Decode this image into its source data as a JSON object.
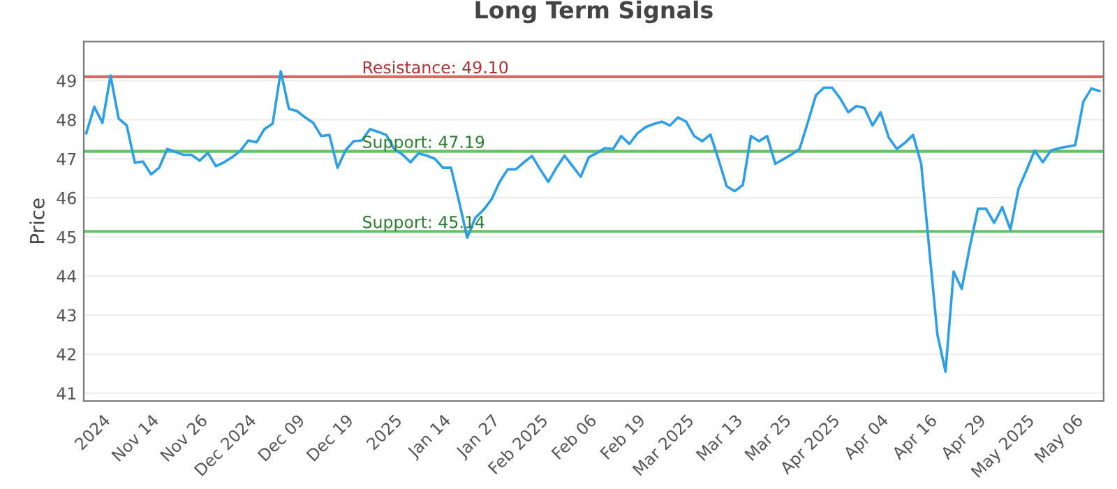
{
  "chart_data": {
    "type": "line",
    "title": "Long Term Signals",
    "ylabel": "Price",
    "categories": [
      null,
      null,
      "2024",
      null,
      null,
      null,
      null,
      null,
      "Nov 14",
      null,
      null,
      null,
      null,
      null,
      "Nov 26",
      null,
      null,
      null,
      null,
      null,
      "Dec 2024",
      null,
      null,
      null,
      null,
      null,
      "Dec 09",
      null,
      null,
      null,
      null,
      null,
      "Dec 19",
      null,
      null,
      null,
      null,
      null,
      "2025",
      null,
      null,
      null,
      null,
      null,
      "Jan 14",
      null,
      null,
      null,
      null,
      null,
      "Jan 27",
      null,
      null,
      null,
      null,
      null,
      "Feb 2025",
      null,
      null,
      null,
      null,
      null,
      "Feb 06",
      null,
      null,
      null,
      null,
      null,
      "Feb 19",
      null,
      null,
      null,
      null,
      null,
      "Mar 2025",
      null,
      null,
      null,
      null,
      null,
      "Mar 13",
      null,
      null,
      null,
      null,
      null,
      "Mar 25",
      null,
      null,
      null,
      null,
      null,
      "Apr 2025",
      null,
      null,
      null,
      null,
      null,
      "Apr 04",
      null,
      null,
      null,
      null,
      null,
      "Apr 16",
      null,
      null,
      null,
      null,
      null,
      "Apr 29",
      null,
      null,
      null,
      null,
      null,
      "May 2025",
      null,
      null,
      null,
      null,
      null,
      "May 06",
      null,
      null,
      null
    ],
    "series": [
      {
        "color": "#2e9fe6",
        "values": [
          47.65,
          48.33,
          47.92,
          49.13,
          48.03,
          47.85,
          46.9,
          46.93,
          46.6,
          46.77,
          47.25,
          47.18,
          47.1,
          47.1,
          46.95,
          47.15,
          46.81,
          46.91,
          47.04,
          47.2,
          47.47,
          47.42,
          47.76,
          47.9,
          49.24,
          48.28,
          48.22,
          48.06,
          47.92,
          47.58,
          47.61,
          46.77,
          47.22,
          47.45,
          47.47,
          47.76,
          47.69,
          47.61,
          47.25,
          47.11,
          46.91,
          47.14,
          47.08,
          47.0,
          46.77,
          46.77,
          45.9,
          44.98,
          45.49,
          45.69,
          45.96,
          46.41,
          46.73,
          46.73,
          46.91,
          47.07,
          46.73,
          46.41,
          46.77,
          47.08,
          46.81,
          46.54,
          47.04,
          47.15,
          47.27,
          47.25,
          47.58,
          47.38,
          47.65,
          47.81,
          47.89,
          47.95,
          47.85,
          48.06,
          47.95,
          47.58,
          47.45,
          47.62,
          46.98,
          46.3,
          46.17,
          46.33,
          47.58,
          47.45,
          47.58,
          46.87,
          46.99,
          47.11,
          47.25,
          47.92,
          48.62,
          48.82,
          48.82,
          48.55,
          48.19,
          48.35,
          48.3,
          47.85,
          48.19,
          47.54,
          47.25,
          47.41,
          47.61,
          46.87,
          44.68,
          42.5,
          41.55,
          44.11,
          43.67,
          44.75,
          45.72,
          45.72,
          45.36,
          45.76,
          45.19,
          46.23,
          46.71,
          47.21,
          46.91,
          47.21,
          47.27,
          47.31,
          47.35,
          48.46,
          48.8,
          48.73
        ]
      }
    ],
    "ylim": [
      40.8,
      50
    ],
    "yticks": [
      41,
      42,
      43,
      44,
      45,
      46,
      47,
      48,
      49
    ],
    "grid": "y",
    "marker": "none",
    "line_style": "solid",
    "ref_lines": [
      {
        "axis": "y",
        "value": 49.1,
        "label": "Resistance: 49.10",
        "color": "#e06666"
      },
      {
        "axis": "y",
        "value": 47.19,
        "label": "Support: 47.19",
        "color": "#6abf69"
      },
      {
        "axis": "y",
        "value": 45.14,
        "label": "Support: 45.14",
        "color": "#6abf69"
      }
    ]
  }
}
